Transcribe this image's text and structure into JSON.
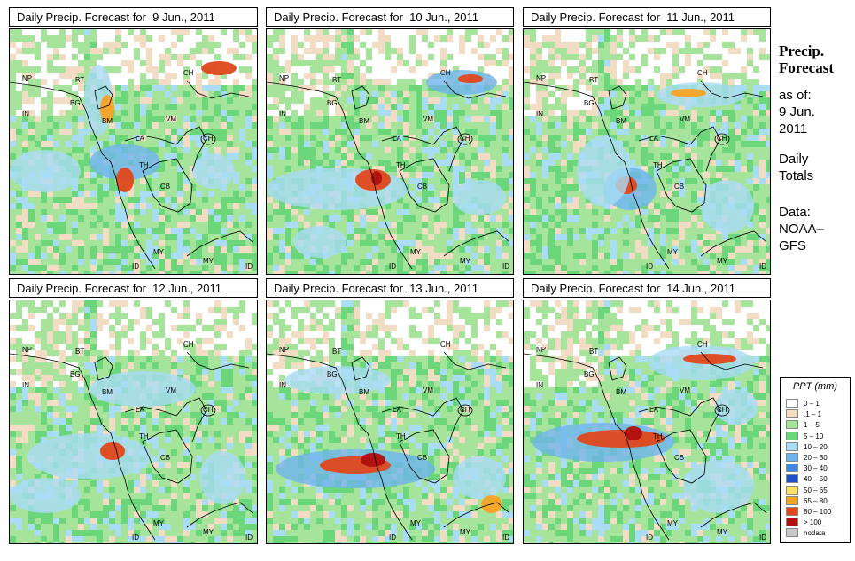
{
  "panels": [
    {
      "title_prefix": "Daily Precip. Forecast for",
      "date": "9 Jun., 2011"
    },
    {
      "title_prefix": "Daily Precip. Forecast for",
      "date": "10 Jun., 2011"
    },
    {
      "title_prefix": "Daily Precip. Forecast for",
      "date": "11 Jun., 2011"
    },
    {
      "title_prefix": "Daily Precip. Forecast for",
      "date": "12 Jun., 2011"
    },
    {
      "title_prefix": "Daily Precip. Forecast for",
      "date": "13 Jun., 2011"
    },
    {
      "title_prefix": "Daily Precip. Forecast for",
      "date": "14 Jun., 2011"
    }
  ],
  "map_labels": [
    "NP",
    "BT",
    "BG",
    "IN",
    "BM",
    "CH",
    "VM",
    "LA",
    "TH",
    "CB",
    "CH",
    "MY",
    "ID",
    "MY",
    "ID"
  ],
  "sidebar": {
    "heading_1": "Precip.",
    "heading_2": "Forecast",
    "as_of": "as of:",
    "date_line_1": "9 Jun.",
    "date_line_2": "2011",
    "totals_1": "Daily",
    "totals_2": "Totals",
    "data_1": "Data:",
    "data_2": "NOAA–",
    "data_3": "GFS"
  },
  "legend": {
    "title": "PPT (mm)",
    "items": [
      {
        "label": "0 – 1",
        "color": "#ffffff"
      },
      {
        "label": ".1 – 1",
        "color": "#f2dcc4"
      },
      {
        "label": "1 – 5",
        "color": "#a6e39b"
      },
      {
        "label": "5 – 10",
        "color": "#6cd67a"
      },
      {
        "label": "10 – 20",
        "color": "#a9dcf5"
      },
      {
        "label": "20 – 30",
        "color": "#6fb4ee"
      },
      {
        "label": "30 – 40",
        "color": "#3f86e0"
      },
      {
        "label": "40 – 50",
        "color": "#2050c8"
      },
      {
        "label": "50 – 65",
        "color": "#f7e36a"
      },
      {
        "label": "65 – 80",
        "color": "#f5a325"
      },
      {
        "label": "80 – 100",
        "color": "#e0471c"
      },
      {
        "label": "> 100",
        "color": "#b01010"
      },
      {
        "label": "nodata",
        "color": "#c8c8c8"
      }
    ]
  }
}
